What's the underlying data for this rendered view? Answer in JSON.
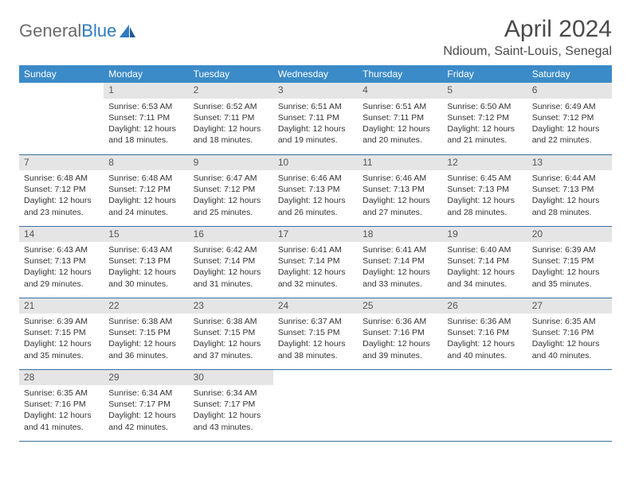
{
  "logo": {
    "text1": "General",
    "text2": "Blue"
  },
  "title": "April 2024",
  "location": "Ndioum, Saint-Louis, Senegal",
  "colors": {
    "header_bg": "#3b8bc8",
    "header_fg": "#ffffff",
    "daynum_bg": "#e5e5e5",
    "rule": "#3b6fa0",
    "logo_gray": "#6a6a6a",
    "logo_blue": "#2f7bbf",
    "text": "#333333"
  },
  "weekdays": [
    "Sunday",
    "Monday",
    "Tuesday",
    "Wednesday",
    "Thursday",
    "Friday",
    "Saturday"
  ],
  "weeks": [
    [
      null,
      {
        "n": "1",
        "sr": "Sunrise: 6:53 AM",
        "ss": "Sunset: 7:11 PM",
        "d1": "Daylight: 12 hours",
        "d2": "and 18 minutes."
      },
      {
        "n": "2",
        "sr": "Sunrise: 6:52 AM",
        "ss": "Sunset: 7:11 PM",
        "d1": "Daylight: 12 hours",
        "d2": "and 18 minutes."
      },
      {
        "n": "3",
        "sr": "Sunrise: 6:51 AM",
        "ss": "Sunset: 7:11 PM",
        "d1": "Daylight: 12 hours",
        "d2": "and 19 minutes."
      },
      {
        "n": "4",
        "sr": "Sunrise: 6:51 AM",
        "ss": "Sunset: 7:11 PM",
        "d1": "Daylight: 12 hours",
        "d2": "and 20 minutes."
      },
      {
        "n": "5",
        "sr": "Sunrise: 6:50 AM",
        "ss": "Sunset: 7:12 PM",
        "d1": "Daylight: 12 hours",
        "d2": "and 21 minutes."
      },
      {
        "n": "6",
        "sr": "Sunrise: 6:49 AM",
        "ss": "Sunset: 7:12 PM",
        "d1": "Daylight: 12 hours",
        "d2": "and 22 minutes."
      }
    ],
    [
      {
        "n": "7",
        "sr": "Sunrise: 6:48 AM",
        "ss": "Sunset: 7:12 PM",
        "d1": "Daylight: 12 hours",
        "d2": "and 23 minutes."
      },
      {
        "n": "8",
        "sr": "Sunrise: 6:48 AM",
        "ss": "Sunset: 7:12 PM",
        "d1": "Daylight: 12 hours",
        "d2": "and 24 minutes."
      },
      {
        "n": "9",
        "sr": "Sunrise: 6:47 AM",
        "ss": "Sunset: 7:12 PM",
        "d1": "Daylight: 12 hours",
        "d2": "and 25 minutes."
      },
      {
        "n": "10",
        "sr": "Sunrise: 6:46 AM",
        "ss": "Sunset: 7:13 PM",
        "d1": "Daylight: 12 hours",
        "d2": "and 26 minutes."
      },
      {
        "n": "11",
        "sr": "Sunrise: 6:46 AM",
        "ss": "Sunset: 7:13 PM",
        "d1": "Daylight: 12 hours",
        "d2": "and 27 minutes."
      },
      {
        "n": "12",
        "sr": "Sunrise: 6:45 AM",
        "ss": "Sunset: 7:13 PM",
        "d1": "Daylight: 12 hours",
        "d2": "and 28 minutes."
      },
      {
        "n": "13",
        "sr": "Sunrise: 6:44 AM",
        "ss": "Sunset: 7:13 PM",
        "d1": "Daylight: 12 hours",
        "d2": "and 28 minutes."
      }
    ],
    [
      {
        "n": "14",
        "sr": "Sunrise: 6:43 AM",
        "ss": "Sunset: 7:13 PM",
        "d1": "Daylight: 12 hours",
        "d2": "and 29 minutes."
      },
      {
        "n": "15",
        "sr": "Sunrise: 6:43 AM",
        "ss": "Sunset: 7:13 PM",
        "d1": "Daylight: 12 hours",
        "d2": "and 30 minutes."
      },
      {
        "n": "16",
        "sr": "Sunrise: 6:42 AM",
        "ss": "Sunset: 7:14 PM",
        "d1": "Daylight: 12 hours",
        "d2": "and 31 minutes."
      },
      {
        "n": "17",
        "sr": "Sunrise: 6:41 AM",
        "ss": "Sunset: 7:14 PM",
        "d1": "Daylight: 12 hours",
        "d2": "and 32 minutes."
      },
      {
        "n": "18",
        "sr": "Sunrise: 6:41 AM",
        "ss": "Sunset: 7:14 PM",
        "d1": "Daylight: 12 hours",
        "d2": "and 33 minutes."
      },
      {
        "n": "19",
        "sr": "Sunrise: 6:40 AM",
        "ss": "Sunset: 7:14 PM",
        "d1": "Daylight: 12 hours",
        "d2": "and 34 minutes."
      },
      {
        "n": "20",
        "sr": "Sunrise: 6:39 AM",
        "ss": "Sunset: 7:15 PM",
        "d1": "Daylight: 12 hours",
        "d2": "and 35 minutes."
      }
    ],
    [
      {
        "n": "21",
        "sr": "Sunrise: 6:39 AM",
        "ss": "Sunset: 7:15 PM",
        "d1": "Daylight: 12 hours",
        "d2": "and 35 minutes."
      },
      {
        "n": "22",
        "sr": "Sunrise: 6:38 AM",
        "ss": "Sunset: 7:15 PM",
        "d1": "Daylight: 12 hours",
        "d2": "and 36 minutes."
      },
      {
        "n": "23",
        "sr": "Sunrise: 6:38 AM",
        "ss": "Sunset: 7:15 PM",
        "d1": "Daylight: 12 hours",
        "d2": "and 37 minutes."
      },
      {
        "n": "24",
        "sr": "Sunrise: 6:37 AM",
        "ss": "Sunset: 7:15 PM",
        "d1": "Daylight: 12 hours",
        "d2": "and 38 minutes."
      },
      {
        "n": "25",
        "sr": "Sunrise: 6:36 AM",
        "ss": "Sunset: 7:16 PM",
        "d1": "Daylight: 12 hours",
        "d2": "and 39 minutes."
      },
      {
        "n": "26",
        "sr": "Sunrise: 6:36 AM",
        "ss": "Sunset: 7:16 PM",
        "d1": "Daylight: 12 hours",
        "d2": "and 40 minutes."
      },
      {
        "n": "27",
        "sr": "Sunrise: 6:35 AM",
        "ss": "Sunset: 7:16 PM",
        "d1": "Daylight: 12 hours",
        "d2": "and 40 minutes."
      }
    ],
    [
      {
        "n": "28",
        "sr": "Sunrise: 6:35 AM",
        "ss": "Sunset: 7:16 PM",
        "d1": "Daylight: 12 hours",
        "d2": "and 41 minutes."
      },
      {
        "n": "29",
        "sr": "Sunrise: 6:34 AM",
        "ss": "Sunset: 7:17 PM",
        "d1": "Daylight: 12 hours",
        "d2": "and 42 minutes."
      },
      {
        "n": "30",
        "sr": "Sunrise: 6:34 AM",
        "ss": "Sunset: 7:17 PM",
        "d1": "Daylight: 12 hours",
        "d2": "and 43 minutes."
      },
      null,
      null,
      null,
      null
    ]
  ]
}
